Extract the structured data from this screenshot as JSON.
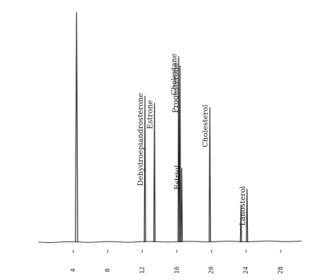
{
  "chart_data": {
    "type": "line",
    "title": "",
    "xlabel": "",
    "ylabel": "",
    "xlim": [
      0,
      30.5
    ],
    "ylim": [
      0,
      100
    ],
    "x_ticks": [
      4,
      8,
      12,
      16,
      20,
      24,
      28
    ],
    "x_tick_labels": [
      "4",
      "8",
      "12",
      "16",
      "20",
      "24",
      "28"
    ],
    "grid": false,
    "legend": "none",
    "line_color": "#222222",
    "baseline": 0,
    "peaks": [
      {
        "x": 4.4,
        "height": 99,
        "label": ""
      },
      {
        "x": 12.3,
        "height": 63,
        "label": "Dehydroepiandrosterone"
      },
      {
        "x": 13.4,
        "height": 60,
        "label": "Estrone"
      },
      {
        "x": 16.2,
        "height": 80,
        "label": "Cholestane"
      },
      {
        "x": 16.35,
        "height": 76,
        "label": "Progesterone"
      },
      {
        "x": 16.55,
        "height": 32,
        "label": "Estriol"
      },
      {
        "x": 19.8,
        "height": 58,
        "label": "Cholesterol"
      },
      {
        "x": 23.4,
        "height": 16,
        "label": ""
      },
      {
        "x": 24.1,
        "height": 23,
        "label": "Lanosterol"
      }
    ]
  }
}
